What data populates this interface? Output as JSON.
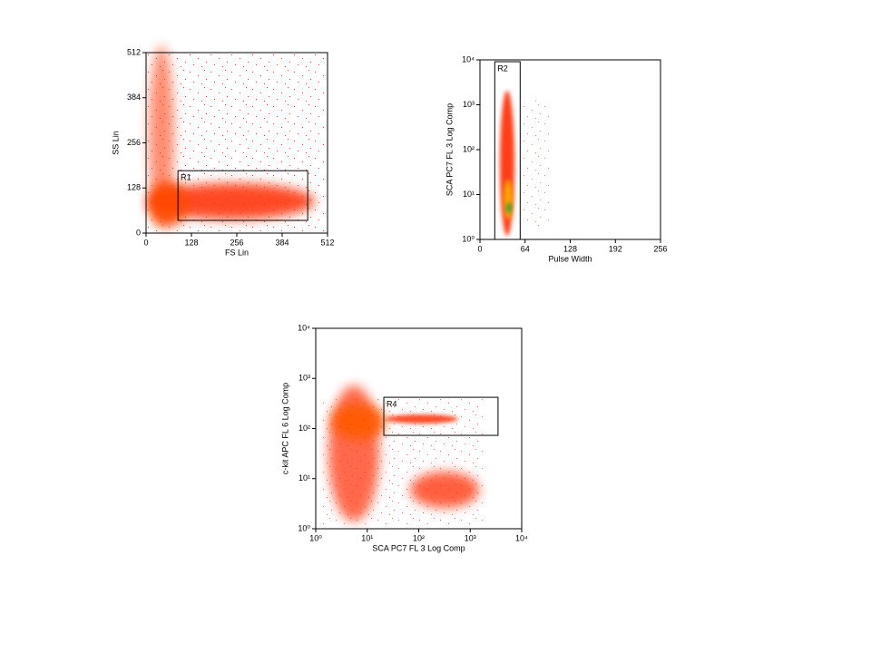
{
  "chart_data": [
    {
      "type": "scatter",
      "xlabel": "FS Lin",
      "ylabel": "SS Lin",
      "xlim": [
        0,
        512
      ],
      "xticks": [
        0,
        128,
        256,
        384,
        512
      ],
      "ylim": [
        0,
        512
      ],
      "yticks": [
        0,
        128,
        256,
        384,
        512
      ],
      "regions": [
        {
          "label": "R1",
          "x": [
            90,
            456
          ],
          "y": [
            36,
            177
          ]
        }
      ]
    },
    {
      "type": "scatter",
      "xlabel": "Pulse Width",
      "ylabel": "SCA PC7 FL 3 Log Comp",
      "xlim": [
        0,
        256
      ],
      "xticks": [
        0,
        64,
        128,
        192,
        256
      ],
      "ylim": [
        1,
        10000
      ],
      "ylog": true,
      "yticks": [
        {
          "value": 1,
          "label": "10⁰"
        },
        {
          "value": 10,
          "label": "10¹"
        },
        {
          "value": 100,
          "label": "10²"
        },
        {
          "value": 1000,
          "label": "10³"
        },
        {
          "value": 10000,
          "label": "10⁴"
        }
      ],
      "regions": [
        {
          "label": "R2",
          "x": [
            21,
            57
          ],
          "y": [
            1,
            9100
          ]
        }
      ]
    },
    {
      "type": "scatter",
      "xlabel": "SCA PC7 FL 3 Log Comp",
      "ylabel": "c-kit APC FL 6 Log Comp",
      "xlim": [
        1,
        10000
      ],
      "xlog": true,
      "xticks": [
        {
          "value": 1,
          "label": "10⁰"
        },
        {
          "value": 10,
          "label": "10¹"
        },
        {
          "value": 100,
          "label": "10²"
        },
        {
          "value": 1000,
          "label": "10³"
        },
        {
          "value": 10000,
          "label": "10⁴"
        }
      ],
      "ylim": [
        1,
        10000
      ],
      "ylog": true,
      "yticks": [
        {
          "value": 1,
          "label": "10⁰"
        },
        {
          "value": 10,
          "label": "10¹"
        },
        {
          "value": 100,
          "label": "10²"
        },
        {
          "value": 1000,
          "label": "10³"
        },
        {
          "value": 10000,
          "label": "10⁴"
        }
      ],
      "regions": [
        {
          "label": "R4",
          "x": [
            21,
            3470
          ],
          "y": [
            73,
            420
          ]
        }
      ]
    }
  ]
}
